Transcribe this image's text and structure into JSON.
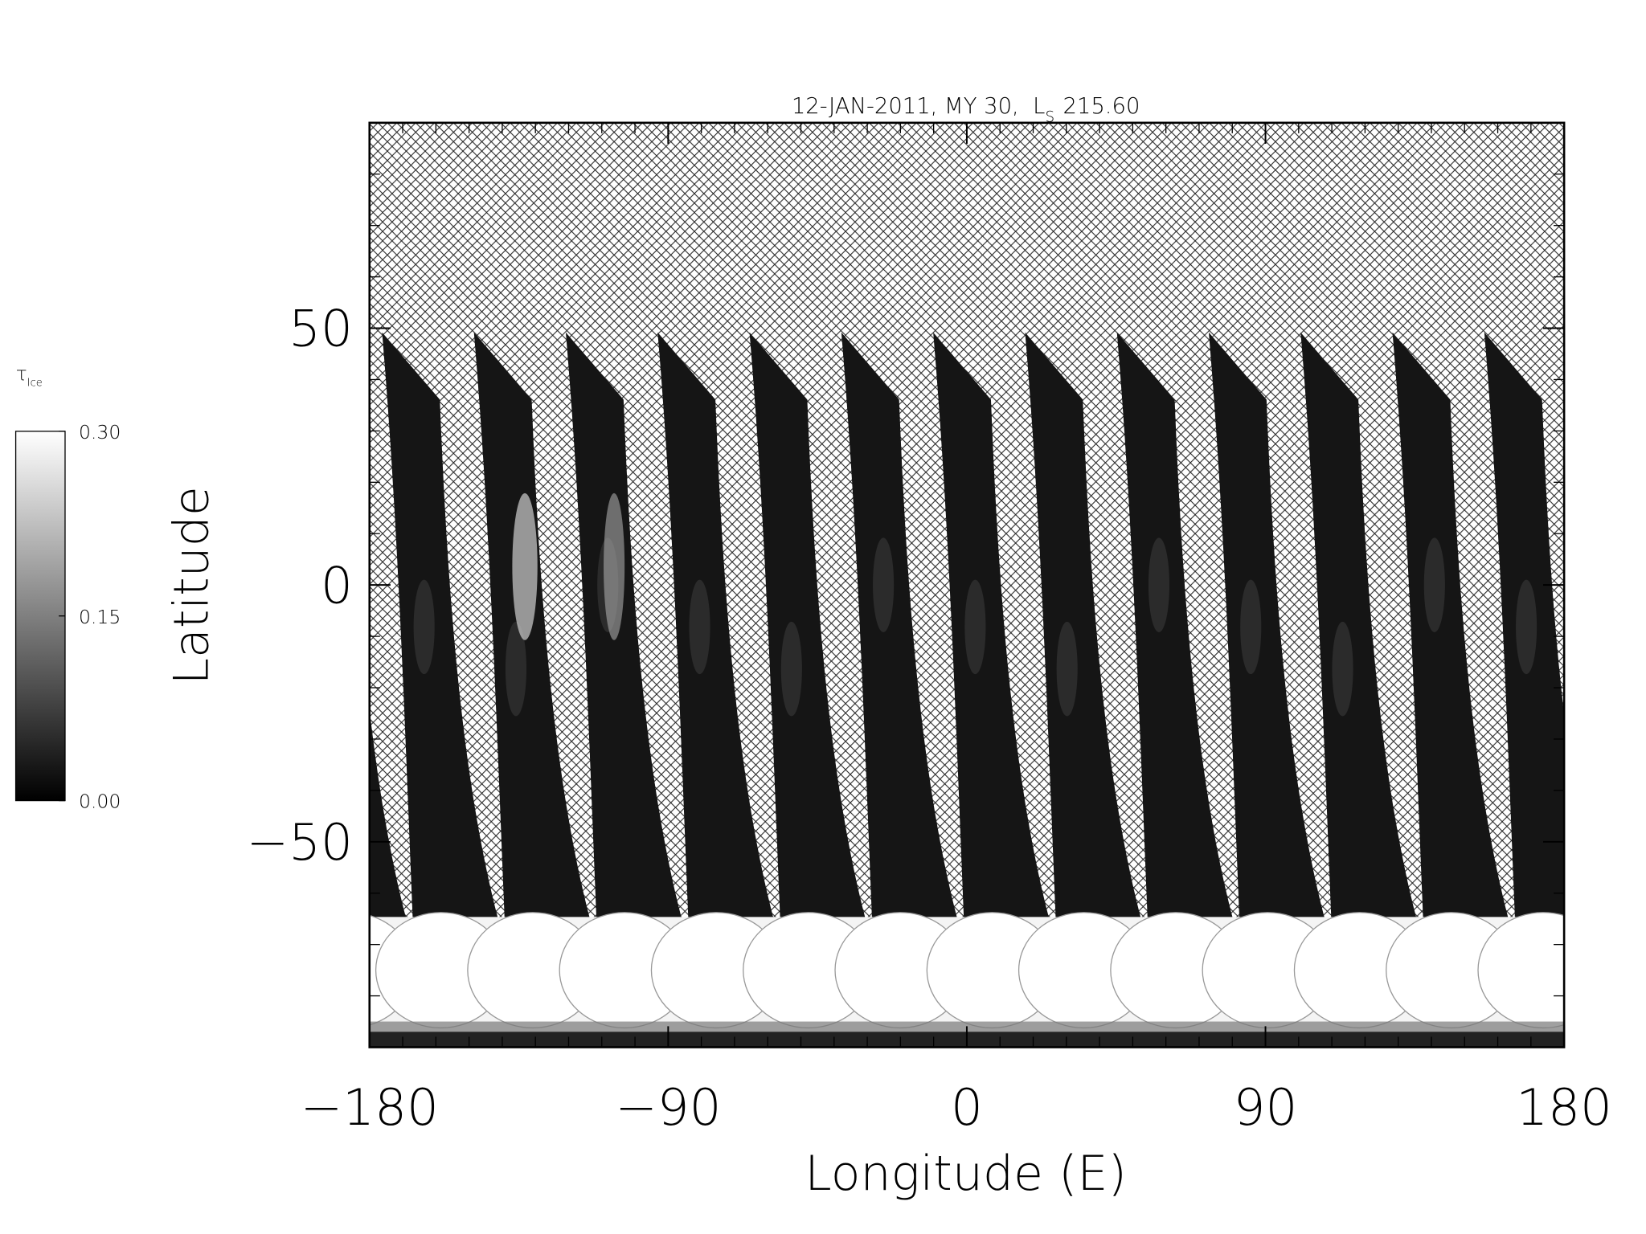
{
  "chart_data": {
    "type": "map",
    "title": "12-JAN-2011, MY 30,  L",
    "title_subscript": "S",
    "title_value": "215.60",
    "xlabel": "Longitude (E)",
    "ylabel": "Latitude",
    "xlim": [
      -180,
      180
    ],
    "ylim": [
      -90,
      90
    ],
    "xticks": [
      {
        "value": -180,
        "label": "−180"
      },
      {
        "value": -90,
        "label": "−90"
      },
      0,
      90,
      180
    ],
    "yticks": [
      {
        "value": -50,
        "label": "−50"
      },
      0,
      50
    ],
    "xminorticks": [
      -170,
      -160,
      -150,
      -140,
      -130,
      -120,
      -110,
      -100,
      -80,
      -70,
      -60,
      -50,
      -40,
      -30,
      -20,
      -10,
      10,
      20,
      30,
      40,
      50,
      60,
      70,
      80,
      100,
      110,
      120,
      130,
      140,
      150,
      160,
      170
    ],
    "yminorticks": [
      -80,
      -70,
      -60,
      -40,
      -30,
      -20,
      -10,
      10,
      20,
      30,
      40,
      60,
      70,
      80
    ],
    "colorbar": {
      "label": "τ",
      "label_subscript": "Ice",
      "lim": [
        0,
        0.3
      ],
      "ticks": [
        {
          "value": 0,
          "label": "0.00"
        },
        {
          "value": 0.15,
          "label": "0.15"
        },
        {
          "value": 0.3,
          "label": "0.30"
        }
      ],
      "colors": [
        "#000000",
        "#ffffff"
      ]
    }
  }
}
